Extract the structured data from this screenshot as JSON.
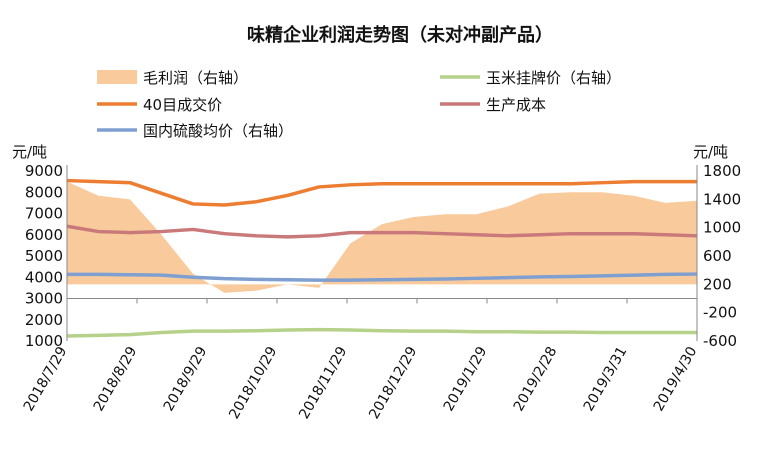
{
  "chart_data": {
    "type": "line",
    "title": "味精企业利润走势图（未对冲副产品）",
    "left_axis": {
      "unit": "元/吨",
      "ylim": [
        1000,
        9000
      ],
      "ticks": [
        1000,
        2000,
        3000,
        4000,
        5000,
        6000,
        7000,
        8000,
        9000
      ]
    },
    "right_axis": {
      "unit": "元/吨",
      "ylim": [
        -600,
        1800
      ],
      "ticks": [
        -600,
        -200,
        200,
        600,
        1000,
        1400,
        1800
      ]
    },
    "x_tick_labels": [
      "2018/7/29",
      "2018/8/29",
      "2018/9/29",
      "2018/10/29",
      "2018/11/29",
      "2018/12/29",
      "2019/1/29",
      "2019/2/28",
      "2019/3/31",
      "2019/4/30"
    ],
    "x": [
      0,
      5,
      10,
      15,
      20,
      25,
      30,
      35,
      40,
      45,
      50,
      55,
      60,
      65,
      70,
      75,
      80,
      85,
      90,
      95,
      100
    ],
    "legend_position": "top",
    "series": [
      {
        "name": "毛利润（右轴）",
        "kind": "area",
        "axis": "right",
        "color": "#f9cb9c",
        "values": [
          1650,
          1450,
          1400,
          900,
          350,
          80,
          110,
          200,
          150,
          780,
          1050,
          1150,
          1190,
          1190,
          1300,
          1480,
          1500,
          1500,
          1450,
          1350,
          1380
        ]
      },
      {
        "name": "玉米挂牌价（右轴）",
        "kind": "line",
        "axis": "right",
        "color": "#b5d18a",
        "values": [
          -530,
          -520,
          -510,
          -480,
          -460,
          -460,
          -455,
          -445,
          -440,
          -445,
          -455,
          -460,
          -460,
          -470,
          -470,
          -475,
          -475,
          -480,
          -480,
          -480,
          -480
        ]
      },
      {
        "name": "40目成交价",
        "kind": "line",
        "axis": "left",
        "color": "#ed7d31",
        "values": [
          8550,
          8500,
          8450,
          7950,
          7450,
          7400,
          7550,
          7850,
          8250,
          8350,
          8400,
          8400,
          8400,
          8400,
          8400,
          8400,
          8400,
          8450,
          8500,
          8500,
          8500
        ]
      },
      {
        "name": "生产成本",
        "kind": "line",
        "axis": "left",
        "color": "#c9797a",
        "values": [
          6400,
          6150,
          6100,
          6150,
          6250,
          6050,
          5950,
          5900,
          5950,
          6100,
          6100,
          6100,
          6050,
          6000,
          5950,
          6000,
          6050,
          6050,
          6050,
          6000,
          5950
        ]
      },
      {
        "name": "国内硫酸均价（右轴）",
        "kind": "line",
        "axis": "right",
        "color": "#7f9fd0",
        "values": [
          340,
          340,
          335,
          330,
          300,
          280,
          270,
          265,
          260,
          260,
          265,
          270,
          275,
          285,
          295,
          305,
          310,
          320,
          330,
          340,
          345
        ]
      }
    ]
  }
}
